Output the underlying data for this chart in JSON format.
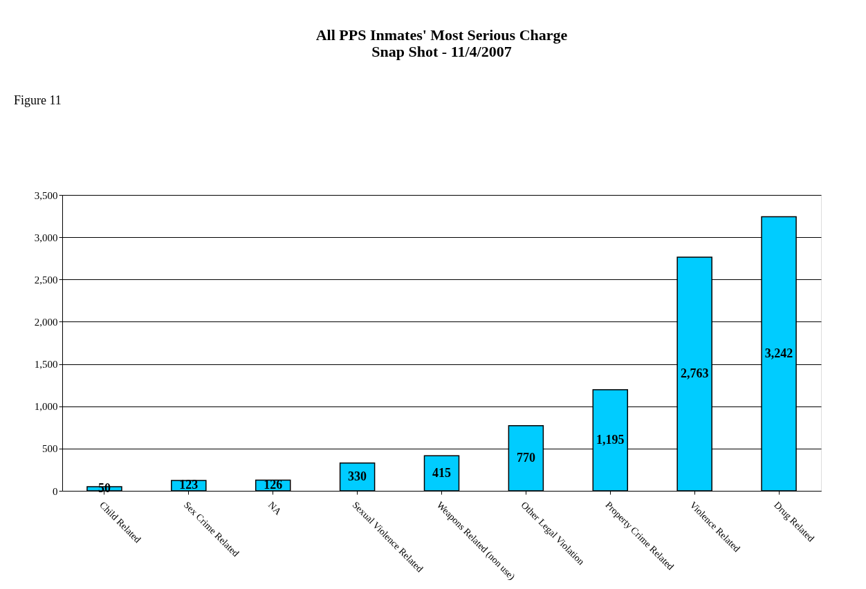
{
  "chart_data": {
    "type": "bar",
    "title": "All PPS Inmates' Most Serious Charge\nSnap Shot - 11/4/2007",
    "annotations": [
      "Figure 11"
    ],
    "categories": [
      "Child Related",
      "Sex Crime Related",
      "NA",
      "Sexual Violence Related",
      "Weapons Related (non use)",
      "Other Legal Violation",
      "Property Crime Related",
      "Violence Related",
      "Drug Related"
    ],
    "values": [
      50,
      123,
      126,
      330,
      415,
      770,
      1195,
      2763,
      3242
    ],
    "color": "#00ccff",
    "value_labels": [
      "50",
      "123",
      "126",
      "330",
      "415",
      "770",
      "1,195",
      "2,763",
      "3,242"
    ],
    "ylim": [
      0,
      3500
    ],
    "yticks": [
      {
        "value": 0,
        "label": "0"
      },
      {
        "value": 500,
        "label": "500"
      },
      {
        "value": 1000,
        "label": "1,000"
      },
      {
        "value": 1500,
        "label": "1,500"
      },
      {
        "value": 2000,
        "label": "2,000"
      },
      {
        "value": 2500,
        "label": "2,500"
      },
      {
        "value": 3000,
        "label": "3,000"
      },
      {
        "value": 3500,
        "label": "3,500"
      }
    ],
    "grid": "y"
  }
}
